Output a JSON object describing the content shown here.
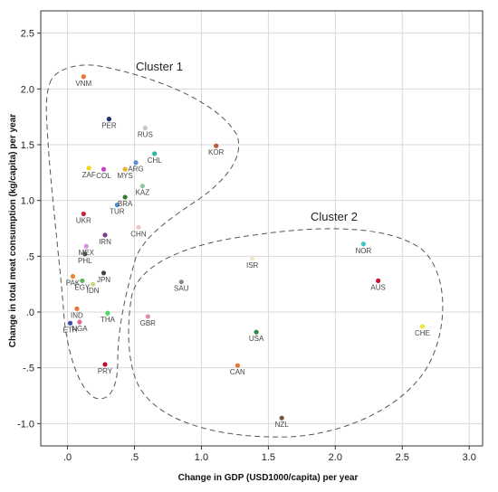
{
  "chart_data": {
    "type": "scatter",
    "title": "",
    "xlabel": "Change in GDP (USD1000/capita) per year",
    "ylabel": "Change in total meat consumption (kg/capita) per year",
    "xlim": [
      -0.2,
      3.1
    ],
    "ylim": [
      -1.2,
      2.7
    ],
    "xticks": [
      0.0,
      0.5,
      1.0,
      1.5,
      2.0,
      2.5,
      3.0
    ],
    "xtick_labels": [
      ".0",
      ".5",
      "1.0",
      "1.5",
      "2.0",
      "2.5",
      "3.0"
    ],
    "yticks": [
      -1.0,
      -0.5,
      0.0,
      0.5,
      1.0,
      1.5,
      2.0,
      2.5
    ],
    "ytick_labels": [
      "-1.0",
      "-.5",
      ".0",
      ".5",
      "1.0",
      "1.5",
      "2.0",
      "2.5"
    ],
    "grid": true,
    "points": [
      {
        "label": "VNM",
        "x": 0.12,
        "y": 2.11,
        "color": "#e8743b"
      },
      {
        "label": "PER",
        "x": 0.31,
        "y": 1.73,
        "color": "#1f2f6e"
      },
      {
        "label": "RUS",
        "x": 0.58,
        "y": 1.65,
        "color": "#c8c8c8"
      },
      {
        "label": "KOR",
        "x": 1.11,
        "y": 1.49,
        "color": "#b85c3c"
      },
      {
        "label": "CHL",
        "x": 0.65,
        "y": 1.42,
        "color": "#2bb5a8"
      },
      {
        "label": "ARG",
        "x": 0.51,
        "y": 1.34,
        "color": "#5b8fd6"
      },
      {
        "label": "ZAF",
        "x": 0.16,
        "y": 1.29,
        "color": "#f2d41c"
      },
      {
        "label": "COL",
        "x": 0.27,
        "y": 1.28,
        "color": "#c545c9"
      },
      {
        "label": "MYS",
        "x": 0.43,
        "y": 1.28,
        "color": "#e8b830"
      },
      {
        "label": "KAZ",
        "x": 0.56,
        "y": 1.13,
        "color": "#8ec9a4"
      },
      {
        "label": "BRA",
        "x": 0.43,
        "y": 1.03,
        "color": "#2f7d32"
      },
      {
        "label": "TUR",
        "x": 0.37,
        "y": 0.96,
        "color": "#4d8fd1"
      },
      {
        "label": "UKR",
        "x": 0.12,
        "y": 0.88,
        "color": "#cc1f3a"
      },
      {
        "label": "CHN",
        "x": 0.53,
        "y": 0.76,
        "color": "#f4c6c6"
      },
      {
        "label": "IRN",
        "x": 0.28,
        "y": 0.69,
        "color": "#7a3f8f"
      },
      {
        "label": "MEX",
        "x": 0.14,
        "y": 0.59,
        "color": "#d68fe0"
      },
      {
        "label": "PHL",
        "x": 0.13,
        "y": 0.52,
        "color": "#555555"
      },
      {
        "label": "PAK",
        "x": 0.04,
        "y": 0.32,
        "color": "#e88a2a"
      },
      {
        "label": "JPN",
        "x": 0.27,
        "y": 0.35,
        "color": "#444444"
      },
      {
        "label": "EGY",
        "x": 0.11,
        "y": 0.28,
        "color": "#5cb85c"
      },
      {
        "label": "IDN",
        "x": 0.19,
        "y": 0.25,
        "color": "#c9d97a"
      },
      {
        "label": "IND",
        "x": 0.07,
        "y": 0.03,
        "color": "#e8743b"
      },
      {
        "label": "THA",
        "x": 0.3,
        "y": -0.01,
        "color": "#4cd964"
      },
      {
        "label": "NGA",
        "x": 0.09,
        "y": -0.09,
        "color": "#e06a8a"
      },
      {
        "label": "ETH",
        "x": 0.02,
        "y": -0.1,
        "color": "#3b4aa8"
      },
      {
        "label": "PRY",
        "x": 0.28,
        "y": -0.47,
        "color": "#c0102a"
      },
      {
        "label": "SAU",
        "x": 0.85,
        "y": 0.27,
        "color": "#8a8a8a"
      },
      {
        "label": "GBR",
        "x": 0.6,
        "y": -0.04,
        "color": "#e88aa8"
      },
      {
        "label": "ISR",
        "x": 1.38,
        "y": 0.48,
        "color": "#f2e6c8"
      },
      {
        "label": "NOR",
        "x": 2.21,
        "y": 0.61,
        "color": "#36c9c4"
      },
      {
        "label": "AUS",
        "x": 2.32,
        "y": 0.28,
        "color": "#d0103a"
      },
      {
        "label": "USA",
        "x": 1.41,
        "y": -0.18,
        "color": "#2f8a3a"
      },
      {
        "label": "CHE",
        "x": 2.65,
        "y": -0.13,
        "color": "#f2e63a"
      },
      {
        "label": "CAN",
        "x": 1.27,
        "y": -0.48,
        "color": "#e8743b"
      },
      {
        "label": "NZL",
        "x": 1.6,
        "y": -0.95,
        "color": "#6b5a3c"
      }
    ],
    "annotations": [
      {
        "text": "Cluster 1"
      },
      {
        "text": "Cluster 2"
      }
    ]
  }
}
